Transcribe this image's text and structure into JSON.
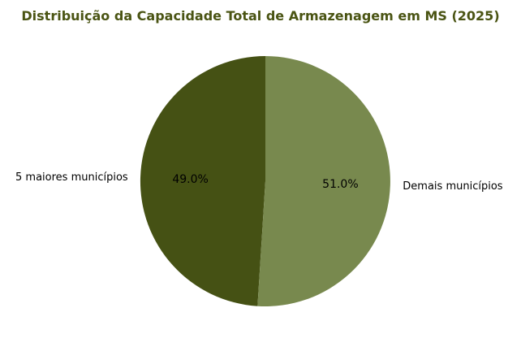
{
  "chart_data": {
    "type": "pie",
    "title": "Distribuição da Capacidade Total de Armazenagem em MS (2025)",
    "labels": [
      "5 maiores municípios",
      "Demais municípios"
    ],
    "values": [
      49.0,
      51.0
    ],
    "pct_labels": [
      "49.0%",
      "51.0%"
    ],
    "slice_colors": [
      "#455114",
      "#78894e"
    ],
    "title_color": "#4a5413",
    "label_color": "#000000",
    "background_color": "#ffffff",
    "start_angle": 90,
    "counterclock": true,
    "legend": "none"
  }
}
